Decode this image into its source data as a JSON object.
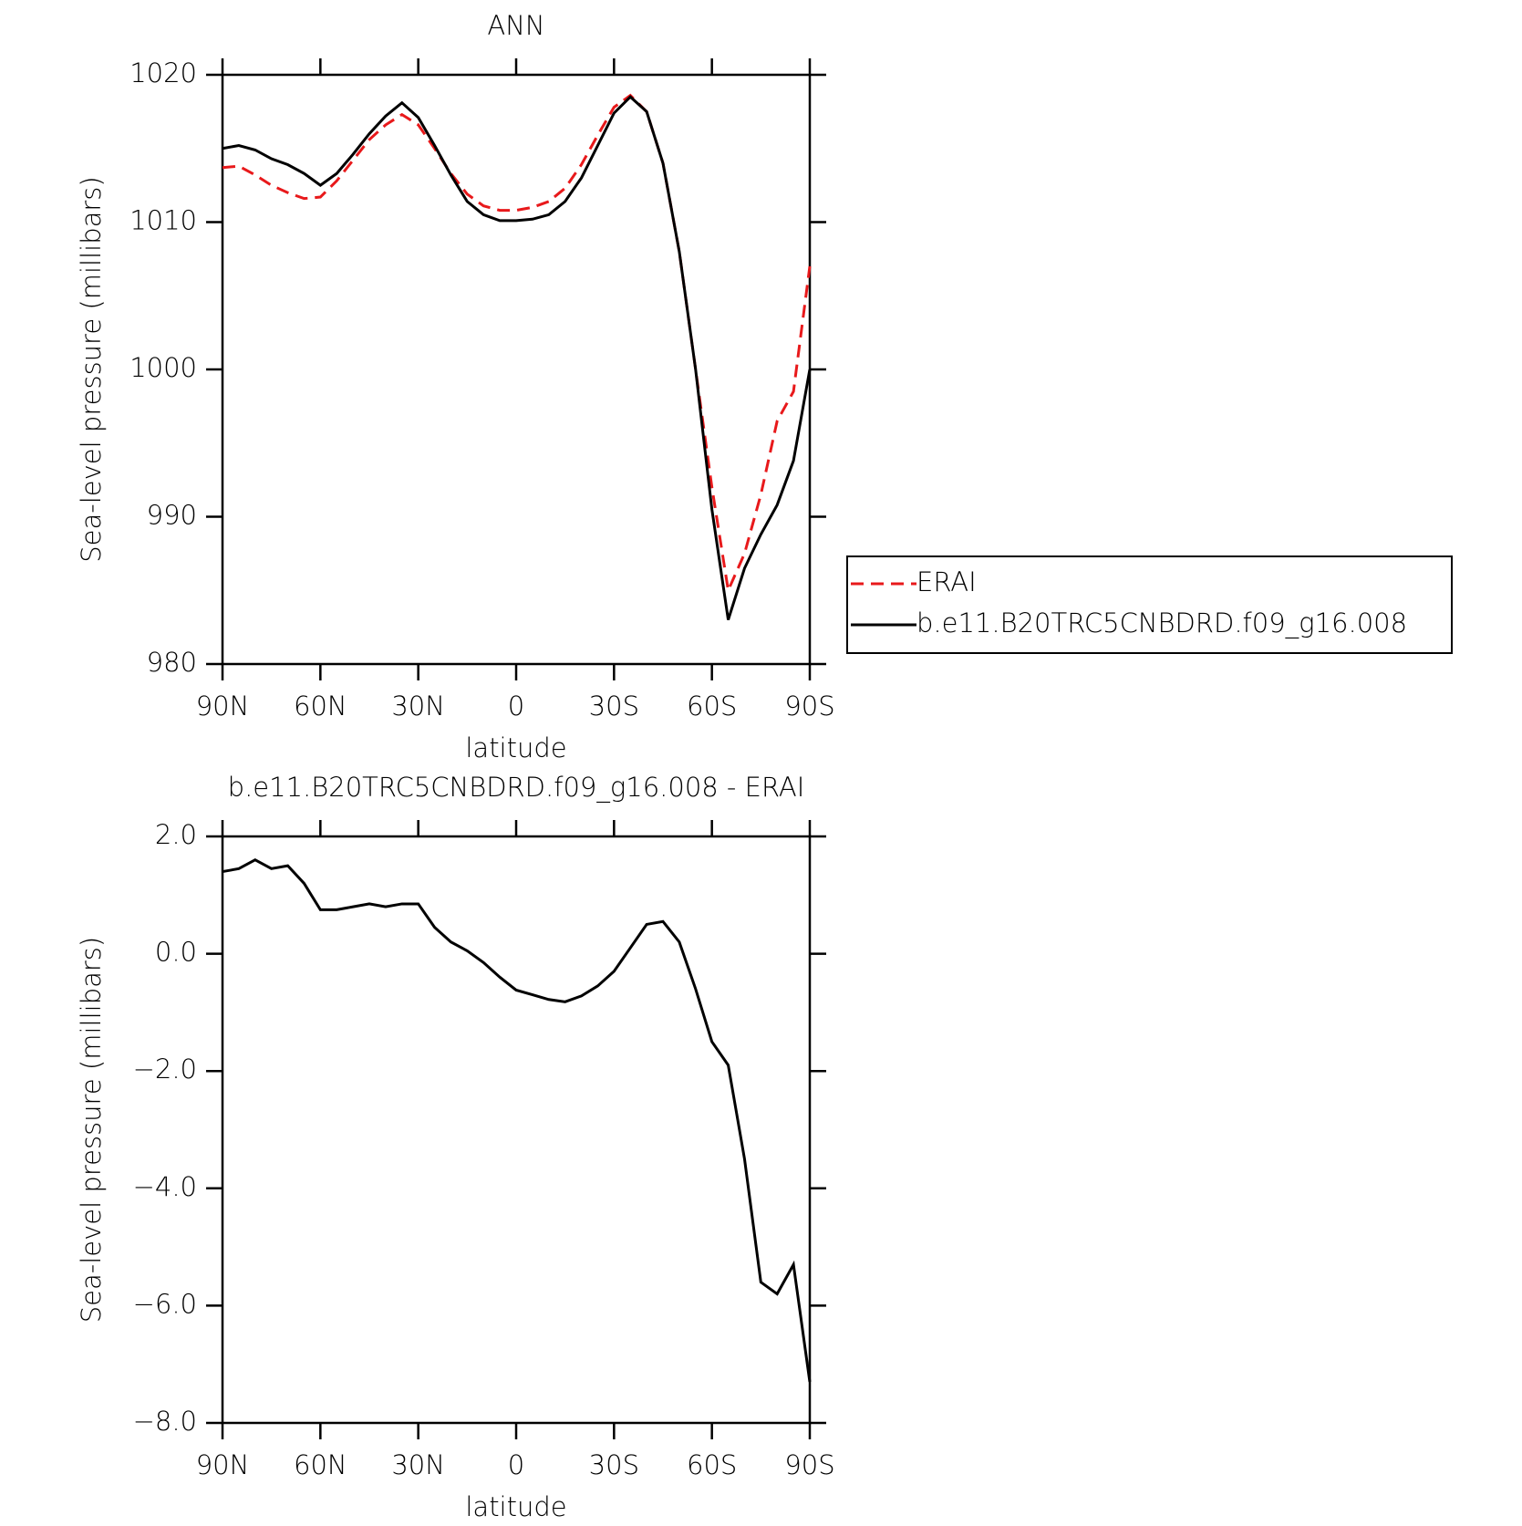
{
  "chart_data": [
    {
      "type": "line",
      "title": "ANN",
      "xlabel": "latitude",
      "ylabel": "Sea-level pressure (millibars)",
      "x": [
        90,
        85,
        80,
        75,
        70,
        65,
        60,
        55,
        50,
        45,
        40,
        35,
        30,
        25,
        20,
        15,
        10,
        5,
        0,
        -5,
        -10,
        -15,
        -20,
        -25,
        -30,
        -35,
        -40,
        -45,
        -50,
        -55,
        -60,
        -65,
        -70,
        -75,
        -80,
        -85,
        -90
      ],
      "series": [
        {
          "name": "ERAI",
          "color": "#e8191b",
          "line_style": "dashed",
          "values": [
            1013.7,
            1013.8,
            1013.2,
            1012.5,
            1012.0,
            1011.6,
            1011.7,
            1012.8,
            1014.2,
            1015.6,
            1016.6,
            1017.3,
            1016.6,
            1015.0,
            1013.3,
            1011.9,
            1011.1,
            1010.8,
            1010.8,
            1011.0,
            1011.4,
            1012.3,
            1013.9,
            1015.9,
            1017.8,
            1018.6,
            1017.5,
            1014.0,
            1008.0,
            1000.0,
            992.0,
            985.0,
            987.5,
            991.5,
            996.5,
            998.5,
            1007.0
          ]
        },
        {
          "name": "b.e11.B20TRC5CNBDRD.f09_g16.008",
          "color": "#000000",
          "line_style": "solid",
          "values": [
            1015.0,
            1015.2,
            1014.9,
            1014.3,
            1013.9,
            1013.3,
            1012.5,
            1013.3,
            1014.6,
            1016.0,
            1017.2,
            1018.1,
            1017.1,
            1015.2,
            1013.2,
            1011.4,
            1010.5,
            1010.1,
            1010.1,
            1010.2,
            1010.5,
            1011.4,
            1013.0,
            1015.2,
            1017.4,
            1018.5,
            1017.5,
            1014.0,
            1008.0,
            1000.0,
            990.5,
            983.0,
            986.5,
            988.8,
            990.8,
            993.8,
            1000.0
          ]
        }
      ],
      "xlim": [
        90,
        -90
      ],
      "xticks": [
        {
          "value": 90,
          "label": "90N"
        },
        {
          "value": 60,
          "label": "60N"
        },
        {
          "value": 30,
          "label": "30N"
        },
        0,
        {
          "value": -30,
          "label": "30S"
        },
        {
          "value": -60,
          "label": "60S"
        },
        {
          "value": -90,
          "label": "90S"
        }
      ],
      "ylim": [
        980,
        1020
      ],
      "yticks": [
        980,
        990,
        1000,
        1010,
        1020
      ],
      "legend": "right"
    },
    {
      "type": "line",
      "title": "b.e11.B20TRC5CNBDRD.f09_g16.008 - ERAI",
      "xlabel": "latitude",
      "ylabel": "Sea-level pressure (millibars)",
      "x": [
        90,
        85,
        80,
        75,
        70,
        65,
        60,
        55,
        50,
        45,
        40,
        35,
        30,
        25,
        20,
        15,
        10,
        5,
        0,
        -5,
        -10,
        -15,
        -20,
        -25,
        -30,
        -35,
        -40,
        -45,
        -50,
        -55,
        -60,
        -65,
        -70,
        -75,
        -80,
        -85,
        -90
      ],
      "values": [
        1.4,
        1.45,
        1.6,
        1.45,
        1.5,
        1.2,
        0.75,
        0.75,
        0.8,
        0.85,
        0.8,
        0.85,
        0.85,
        0.45,
        0.2,
        0.05,
        -0.15,
        -0.4,
        -0.62,
        -0.7,
        -0.78,
        -0.82,
        -0.72,
        -0.55,
        -0.3,
        0.1,
        0.5,
        0.55,
        0.2,
        -0.6,
        -1.5,
        -1.9,
        -3.5,
        -5.6,
        -5.8,
        -5.3,
        -7.3
      ],
      "color": "#000000",
      "xlim": [
        90,
        -90
      ],
      "xticks": [
        {
          "value": 90,
          "label": "90N"
        },
        {
          "value": 60,
          "label": "60N"
        },
        {
          "value": 30,
          "label": "30N"
        },
        0,
        {
          "value": -30,
          "label": "30S"
        },
        {
          "value": -60,
          "label": "60S"
        },
        {
          "value": -90,
          "label": "90S"
        }
      ],
      "ylim": [
        -8,
        2
      ],
      "yticks": [
        {
          "value": -8,
          "label": "−8.0"
        },
        {
          "value": -6,
          "label": "−6.0"
        },
        {
          "value": -4,
          "label": "−4.0"
        },
        {
          "value": -2,
          "label": "−2.0"
        },
        {
          "value": 0,
          "label": "0.0"
        },
        {
          "value": 2,
          "label": "2.0"
        }
      ]
    }
  ]
}
